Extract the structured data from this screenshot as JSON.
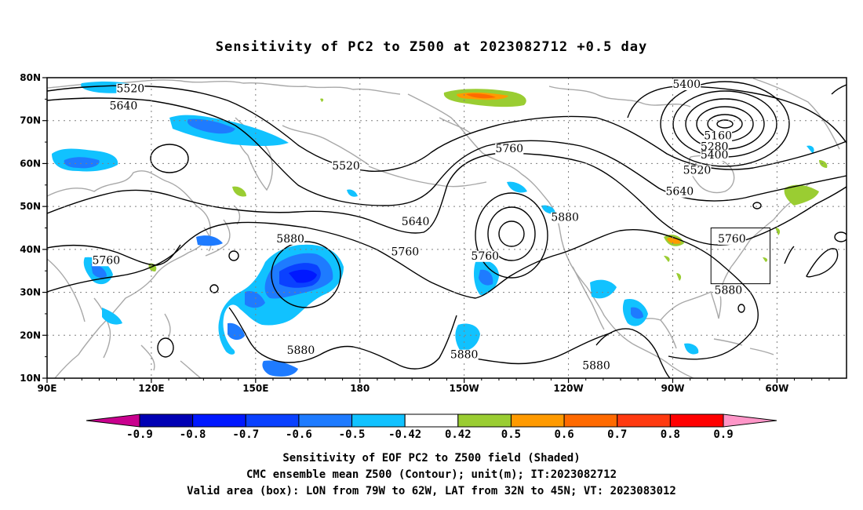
{
  "title": "Sensitivity of PC2 to Z500 at 2023082712 +0.5 day",
  "lat_labels": [
    "80N",
    "70N",
    "60N",
    "50N",
    "40N",
    "30N",
    "20N",
    "10N"
  ],
  "lon_labels": [
    "90E",
    "120E",
    "150E",
    "180",
    "150W",
    "120W",
    "90W",
    "60W"
  ],
  "contour_labels": [
    {
      "text": "5400",
      "lon": -86,
      "lat": 78
    },
    {
      "text": "5520",
      "lon": 114,
      "lat": 77
    },
    {
      "text": "5640",
      "lon": 112,
      "lat": 73
    },
    {
      "text": "5160",
      "lon": -77,
      "lat": 66
    },
    {
      "text": "5280",
      "lon": -78,
      "lat": 63.5
    },
    {
      "text": "5400",
      "lon": -78,
      "lat": 61.5
    },
    {
      "text": "5520",
      "lon": -83,
      "lat": 58
    },
    {
      "text": "5640",
      "lon": -88,
      "lat": 53
    },
    {
      "text": "5760",
      "lon": -137,
      "lat": 63
    },
    {
      "text": "5520",
      "lon": 176,
      "lat": 59
    },
    {
      "text": "5640",
      "lon": -164,
      "lat": 46
    },
    {
      "text": "5880",
      "lon": -121,
      "lat": 47
    },
    {
      "text": "5760",
      "lon": -73,
      "lat": 42
    },
    {
      "text": "5880",
      "lon": 160,
      "lat": 42
    },
    {
      "text": "5760",
      "lon": -167,
      "lat": 39
    },
    {
      "text": "5760",
      "lon": -144,
      "lat": 38
    },
    {
      "text": "5760",
      "lon": 107,
      "lat": 37
    },
    {
      "text": "5880",
      "lon": -74,
      "lat": 30
    },
    {
      "text": "5880",
      "lon": 163,
      "lat": 16
    },
    {
      "text": "5880",
      "lon": -150,
      "lat": 15
    },
    {
      "text": "5880",
      "lon": -112,
      "lat": 12.5
    }
  ],
  "valid_box": {
    "lon_min": -79,
    "lon_max": -62,
    "lat_min": 32,
    "lat_max": 45
  },
  "colorbar": {
    "colors": [
      "#c9008e",
      "#0000b4",
      "#0018ff",
      "#0a41ff",
      "#1e7bff",
      "#11c2ff",
      "#ffffff",
      "#9acd32",
      "#ff9a00",
      "#ff6a00",
      "#ff3a10",
      "#ff0000",
      "#ff96c8"
    ],
    "labels": [
      "-0.9",
      "-0.8",
      "-0.7",
      "-0.6",
      "-0.5",
      "-0.42",
      "0.42",
      "0.5",
      "0.6",
      "0.7",
      "0.8",
      "0.9"
    ]
  },
  "caption": [
    "Sensitivity of EOF PC2 to Z500 field (Shaded)",
    "CMC ensemble mean Z500 (Contour); unit(m); IT:2023082712",
    "Valid area (box): LON from 79W to 62W, LAT from 32N to 45N; VT: 2023083012"
  ]
}
